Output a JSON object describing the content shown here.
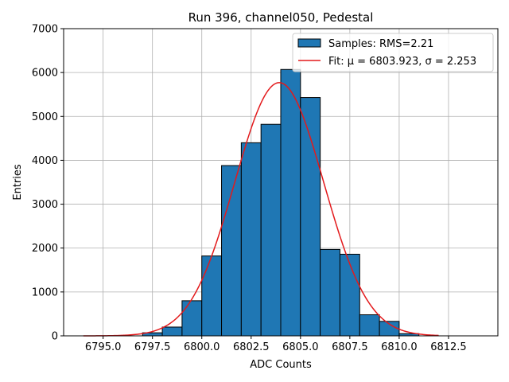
{
  "chart_data": {
    "type": "bar",
    "title": "Run 396, channel050, Pedestal",
    "xlabel": "ADC Counts",
    "ylabel": "Entries",
    "xlim": [
      6793.0,
      6815.0
    ],
    "ylim": [
      0,
      7000
    ],
    "grid": true,
    "legend_placement": "top-right",
    "x_ticks": [
      6795.0,
      6797.5,
      6800.0,
      6802.5,
      6805.0,
      6807.5,
      6810.0,
      6812.5
    ],
    "x_tick_labels": [
      "6795.0",
      "6797.5",
      "6800.0",
      "6802.5",
      "6805.0",
      "6807.5",
      "6810.0",
      "6812.5"
    ],
    "y_ticks": [
      0,
      1000,
      2000,
      3000,
      4000,
      5000,
      6000,
      7000
    ],
    "y_tick_labels": [
      "0",
      "1000",
      "2000",
      "3000",
      "4000",
      "5000",
      "6000",
      "7000"
    ],
    "series": [
      {
        "name": "Samples: RMS=2.21",
        "kind": "histogram",
        "color": "#1f77b4",
        "edge_color": "#000000",
        "bin_edges": [
          6797,
          6798,
          6799,
          6800,
          6801,
          6802,
          6803,
          6804,
          6805,
          6806,
          6807,
          6808,
          6809,
          6810,
          6811
        ],
        "values": [
          70,
          200,
          800,
          1820,
          3880,
          4400,
          4820,
          6070,
          5430,
          1970,
          1860,
          480,
          330,
          50
        ]
      },
      {
        "name": "Fit: μ = 6803.923, σ = 2.253",
        "kind": "line",
        "color": "#e31a1c",
        "mu": 6803.923,
        "sigma": 2.253,
        "amplitude": 5770,
        "x_range": [
          6794,
          6812
        ]
      }
    ]
  }
}
